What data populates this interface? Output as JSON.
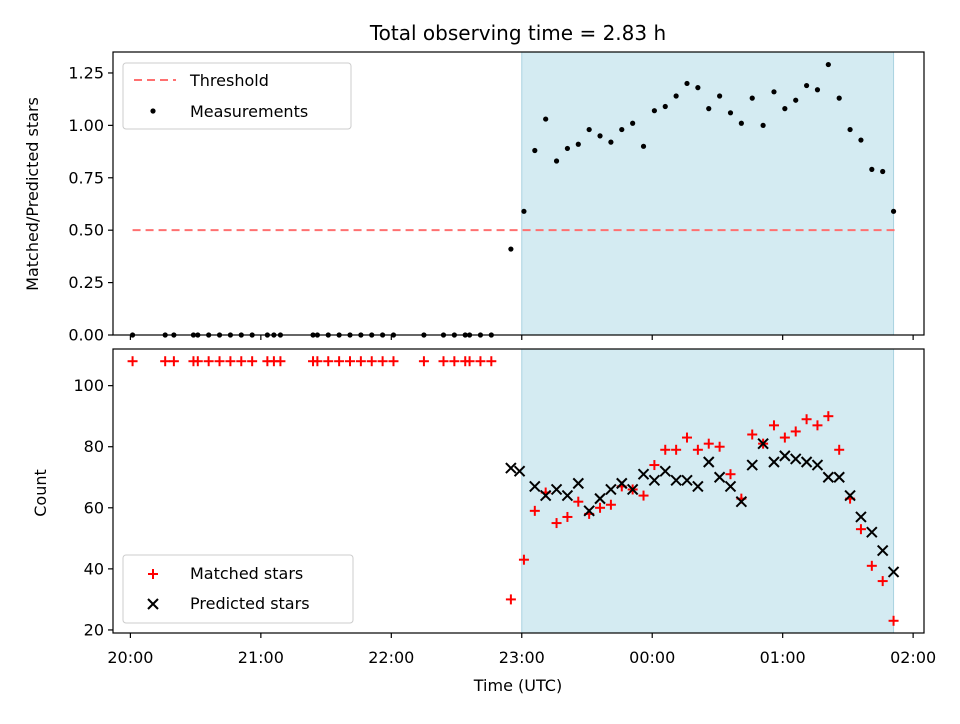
{
  "chart_data": {
    "title": "Total observing time = 2.83 h",
    "xlabel": "Time (UTC)",
    "x_ticks": [
      "20:00",
      "21:00",
      "22:00",
      "23:00",
      "00:00",
      "01:00",
      "02:00"
    ],
    "x_range": [
      "19:52",
      "02:05"
    ],
    "observing_window": [
      "23:00",
      "01:51"
    ],
    "colors": {
      "window": "#d4ebf2",
      "threshold": "#ff7070",
      "matched": "#ff0000",
      "predicted": "#000000",
      "measurement": "#000000"
    },
    "panels": [
      {
        "type": "scatter",
        "ylabel": "Matched/Predicted stars",
        "ylim": [
          0,
          1.35
        ],
        "y_ticks": [
          "0.00",
          "0.25",
          "0.50",
          "0.75",
          "1.00",
          "1.25"
        ],
        "legend_position": "upper-left",
        "threshold": {
          "name": "Threshold",
          "value": 0.5,
          "x_start": "20:01",
          "x_end": "01:52"
        },
        "series": [
          {
            "name": "Measurements",
            "points": [
              [
                "20:01",
                0.0
              ],
              [
                "20:16",
                0.0
              ],
              [
                "20:20",
                0.0
              ],
              [
                "20:29",
                0.0
              ],
              [
                "20:31",
                0.0
              ],
              [
                "20:36",
                0.0
              ],
              [
                "20:41",
                0.0
              ],
              [
                "20:46",
                0.0
              ],
              [
                "20:51",
                0.0
              ],
              [
                "20:56",
                0.0
              ],
              [
                "21:03",
                0.0
              ],
              [
                "21:06",
                0.0
              ],
              [
                "21:09",
                0.0
              ],
              [
                "21:24",
                0.0
              ],
              [
                "21:26",
                0.0
              ],
              [
                "21:31",
                0.0
              ],
              [
                "21:36",
                0.0
              ],
              [
                "21:41",
                0.0
              ],
              [
                "21:46",
                0.0
              ],
              [
                "21:51",
                0.0
              ],
              [
                "21:56",
                0.0
              ],
              [
                "22:01",
                0.0
              ],
              [
                "22:15",
                0.0
              ],
              [
                "22:24",
                0.0
              ],
              [
                "22:29",
                0.0
              ],
              [
                "22:34",
                0.0
              ],
              [
                "22:36",
                0.0
              ],
              [
                "22:41",
                0.0
              ],
              [
                "22:46",
                0.0
              ],
              [
                "22:55",
                0.41
              ],
              [
                "23:01",
                0.59
              ],
              [
                "23:06",
                0.88
              ],
              [
                "23:11",
                1.03
              ],
              [
                "23:16",
                0.83
              ],
              [
                "23:21",
                0.89
              ],
              [
                "23:26",
                0.91
              ],
              [
                "23:31",
                0.98
              ],
              [
                "23:36",
                0.95
              ],
              [
                "23:41",
                0.92
              ],
              [
                "23:46",
                0.98
              ],
              [
                "23:51",
                1.01
              ],
              [
                "23:56",
                0.9
              ],
              [
                "00:01",
                1.07
              ],
              [
                "00:06",
                1.09
              ],
              [
                "00:11",
                1.14
              ],
              [
                "00:16",
                1.2
              ],
              [
                "00:21",
                1.18
              ],
              [
                "00:26",
                1.08
              ],
              [
                "00:31",
                1.14
              ],
              [
                "00:36",
                1.06
              ],
              [
                "00:41",
                1.01
              ],
              [
                "00:46",
                1.13
              ],
              [
                "00:51",
                1.0
              ],
              [
                "00:56",
                1.16
              ],
              [
                "01:01",
                1.08
              ],
              [
                "01:06",
                1.12
              ],
              [
                "01:11",
                1.19
              ],
              [
                "01:16",
                1.17
              ],
              [
                "01:21",
                1.29
              ],
              [
                "01:26",
                1.13
              ],
              [
                "01:31",
                0.98
              ],
              [
                "01:36",
                0.93
              ],
              [
                "01:41",
                0.79
              ],
              [
                "01:46",
                0.78
              ],
              [
                "01:51",
                0.59
              ]
            ]
          }
        ]
      },
      {
        "type": "scatter",
        "ylabel": "Count",
        "ylim": [
          19,
          112
        ],
        "y_ticks": [
          "20",
          "40",
          "60",
          "80",
          "100"
        ],
        "legend_position": "lower-left",
        "series": [
          {
            "name": "Matched stars",
            "points": [
              [
                "20:01",
                108
              ],
              [
                "20:16",
                108
              ],
              [
                "20:20",
                108
              ],
              [
                "20:29",
                108
              ],
              [
                "20:31",
                108
              ],
              [
                "20:36",
                108
              ],
              [
                "20:41",
                108
              ],
              [
                "20:46",
                108
              ],
              [
                "20:51",
                108
              ],
              [
                "20:56",
                108
              ],
              [
                "21:03",
                108
              ],
              [
                "21:06",
                108
              ],
              [
                "21:09",
                108
              ],
              [
                "21:24",
                108
              ],
              [
                "21:26",
                108
              ],
              [
                "21:31",
                108
              ],
              [
                "21:36",
                108
              ],
              [
                "21:41",
                108
              ],
              [
                "21:46",
                108
              ],
              [
                "21:51",
                108
              ],
              [
                "21:56",
                108
              ],
              [
                "22:01",
                108
              ],
              [
                "22:15",
                108
              ],
              [
                "22:24",
                108
              ],
              [
                "22:29",
                108
              ],
              [
                "22:34",
                108
              ],
              [
                "22:36",
                108
              ],
              [
                "22:41",
                108
              ],
              [
                "22:46",
                108
              ],
              [
                "22:55",
                30
              ],
              [
                "23:01",
                43
              ],
              [
                "23:06",
                59
              ],
              [
                "23:11",
                65
              ],
              [
                "23:16",
                55
              ],
              [
                "23:21",
                57
              ],
              [
                "23:26",
                62
              ],
              [
                "23:31",
                58
              ],
              [
                "23:36",
                60
              ],
              [
                "23:41",
                61
              ],
              [
                "23:46",
                67
              ],
              [
                "23:51",
                66
              ],
              [
                "23:56",
                64
              ],
              [
                "00:01",
                74
              ],
              [
                "00:06",
                79
              ],
              [
                "00:11",
                79
              ],
              [
                "00:16",
                83
              ],
              [
                "00:21",
                79
              ],
              [
                "00:26",
                81
              ],
              [
                "00:31",
                80
              ],
              [
                "00:36",
                71
              ],
              [
                "00:41",
                63
              ],
              [
                "00:46",
                84
              ],
              [
                "00:51",
                81
              ],
              [
                "00:56",
                87
              ],
              [
                "01:01",
                83
              ],
              [
                "01:06",
                85
              ],
              [
                "01:11",
                89
              ],
              [
                "01:16",
                87
              ],
              [
                "01:21",
                90
              ],
              [
                "01:26",
                79
              ],
              [
                "01:31",
                63
              ],
              [
                "01:36",
                53
              ],
              [
                "01:41",
                41
              ],
              [
                "01:46",
                36
              ],
              [
                "01:51",
                23
              ]
            ]
          },
          {
            "name": "Predicted stars",
            "points": [
              [
                "22:55",
                73
              ],
              [
                "22:59",
                72
              ],
              [
                "23:06",
                67
              ],
              [
                "23:11",
                64
              ],
              [
                "23:16",
                66
              ],
              [
                "23:21",
                64
              ],
              [
                "23:26",
                68
              ],
              [
                "23:31",
                59
              ],
              [
                "23:36",
                63
              ],
              [
                "23:41",
                66
              ],
              [
                "23:46",
                68
              ],
              [
                "23:51",
                66
              ],
              [
                "23:56",
                71
              ],
              [
                "00:01",
                69
              ],
              [
                "00:06",
                72
              ],
              [
                "00:11",
                69
              ],
              [
                "00:16",
                69
              ],
              [
                "00:21",
                67
              ],
              [
                "00:26",
                75
              ],
              [
                "00:31",
                70
              ],
              [
                "00:36",
                67
              ],
              [
                "00:41",
                62
              ],
              [
                "00:46",
                74
              ],
              [
                "00:51",
                81
              ],
              [
                "00:56",
                75
              ],
              [
                "01:01",
                77
              ],
              [
                "01:06",
                76
              ],
              [
                "01:11",
                75
              ],
              [
                "01:16",
                74
              ],
              [
                "01:21",
                70
              ],
              [
                "01:26",
                70
              ],
              [
                "01:31",
                64
              ],
              [
                "01:36",
                57
              ],
              [
                "01:41",
                52
              ],
              [
                "01:46",
                46
              ],
              [
                "01:51",
                39
              ]
            ]
          }
        ]
      }
    ]
  }
}
